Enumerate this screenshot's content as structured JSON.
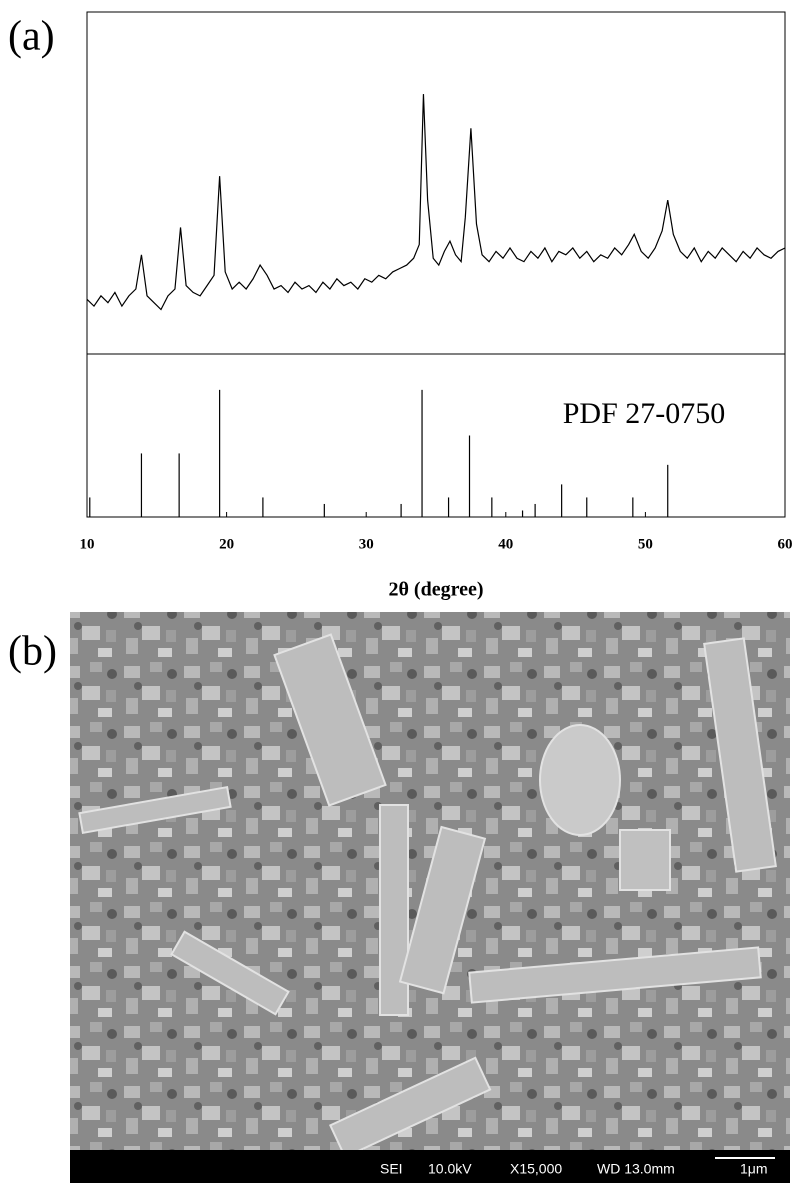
{
  "panel_labels": [
    "(a)",
    "(b)"
  ],
  "chart_data": [
    {
      "type": "line",
      "color": "#000000",
      "xlim": [
        10,
        60
      ],
      "ylim": [
        0,
        100
      ],
      "x": [
        10,
        10.5,
        11,
        11.5,
        12,
        12.5,
        13,
        13.5,
        13.9,
        14.3,
        14.8,
        15.3,
        15.8,
        16.3,
        16.7,
        17.1,
        17.6,
        18.1,
        18.6,
        19.1,
        19.5,
        19.9,
        20.4,
        20.9,
        21.4,
        21.9,
        22.4,
        22.9,
        23.4,
        23.9,
        24.4,
        24.9,
        25.4,
        25.9,
        26.4,
        26.9,
        27.4,
        27.9,
        28.4,
        28.9,
        29.4,
        29.9,
        30.4,
        30.9,
        31.4,
        31.9,
        32.4,
        32.9,
        33.4,
        33.8,
        34.1,
        34.4,
        34.8,
        35.2,
        35.6,
        36.0,
        36.4,
        36.8,
        37.1,
        37.5,
        37.9,
        38.3,
        38.8,
        39.3,
        39.8,
        40.3,
        40.8,
        41.3,
        41.8,
        42.3,
        42.8,
        43.3,
        43.8,
        44.3,
        44.8,
        45.3,
        45.8,
        46.3,
        46.8,
        47.3,
        47.8,
        48.3,
        48.8,
        49.2,
        49.7,
        50.2,
        50.7,
        51.2,
        51.6,
        52.0,
        52.5,
        53.0,
        53.5,
        54.0,
        54.5,
        55.0,
        55.5,
        56.0,
        56.5,
        57.0,
        57.5,
        58.0,
        58.5,
        59.0,
        59.5,
        60
      ],
      "values": [
        16,
        14,
        17,
        15,
        18,
        14,
        17,
        19,
        29,
        17,
        15,
        13,
        17,
        19,
        37,
        20,
        18,
        17,
        20,
        23,
        52,
        24,
        19,
        21,
        19,
        22,
        26,
        23,
        19,
        20,
        18,
        21,
        19,
        20,
        18,
        21,
        19,
        22,
        20,
        21,
        19,
        22,
        21,
        23,
        22,
        24,
        25,
        26,
        28,
        32,
        76,
        45,
        28,
        26,
        30,
        33,
        29,
        27,
        40,
        66,
        38,
        29,
        27,
        30,
        28,
        31,
        28,
        27,
        30,
        28,
        31,
        27,
        30,
        29,
        31,
        28,
        30,
        27,
        29,
        28,
        31,
        29,
        32,
        35,
        30,
        28,
        31,
        36,
        45,
        35,
        30,
        28,
        31,
        27,
        30,
        28,
        31,
        29,
        27,
        30,
        28,
        31,
        29,
        28,
        30,
        31
      ]
    },
    {
      "type": "stem",
      "color": "#000000",
      "annotation": "PDF 27-0750",
      "xlabel": "2θ (degree)",
      "xlim": [
        10,
        60
      ],
      "ylim": [
        0,
        100
      ],
      "xticks": [
        10,
        20,
        30,
        40,
        50,
        60
      ],
      "x": [
        10.2,
        13.9,
        16.6,
        19.5,
        22.6,
        27.0,
        32.5,
        34.0,
        35.9,
        37.4,
        39.0,
        41.2,
        42.1,
        44.0,
        45.8,
        49.1,
        51.6
      ],
      "values": [
        12,
        39,
        39,
        78,
        12,
        8,
        8,
        78,
        12,
        50,
        12,
        4,
        8,
        20,
        12,
        12,
        32
      ]
    }
  ],
  "sem_image": {
    "footer": [
      "SEI",
      "10.0kV",
      "X15,000",
      "WD 13.0mm",
      "1μm"
    ]
  }
}
